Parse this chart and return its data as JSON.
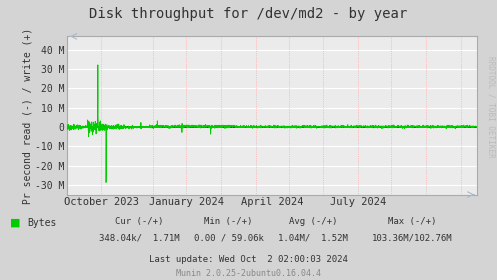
{
  "title": "Disk throughput for /dev/md2 - by year",
  "ylabel": "Pr second read (-) / write (+)",
  "right_label": "RRDTOOL / TOBI OETIKER",
  "bg_color": "#d4d4d4",
  "plot_bg_color": "#ebebeb",
  "line_color": "#00cc00",
  "zero_line_color": "#000000",
  "grid_h_color": "#ffffff",
  "grid_v_color": "#ff9999",
  "ylim": [
    -35000000,
    47000000
  ],
  "yticks": [
    -30000000,
    -20000000,
    -10000000,
    0,
    10000000,
    20000000,
    30000000,
    40000000
  ],
  "ytick_labels": [
    "-30 M",
    "-20 M",
    "-10 M",
    "0",
    "10 M",
    "20 M",
    "30 M",
    "40 M"
  ],
  "xtick_labels": [
    "October 2023",
    "January 2024",
    "April 2024",
    "July 2024"
  ],
  "xtick_positions": [
    0.083,
    0.29,
    0.5,
    0.71
  ],
  "vline_positions": [
    0.083,
    0.21,
    0.29,
    0.375,
    0.46,
    0.54,
    0.625,
    0.71,
    0.79,
    0.875,
    0.96
  ],
  "legend_label": "Bytes",
  "legend_color": "#00cc00",
  "cur_text": "Cur (-/+)",
  "cur_val": "348.04k/  1.71M",
  "min_text": "Min (-/+)",
  "min_val": "0.00 / 59.06k",
  "avg_text": "Avg (-/+)",
  "avg_val": "1.04M/  1.52M",
  "max_text": "Max (-/+)",
  "max_val": "103.36M/102.76M",
  "last_update": "Last update: Wed Oct  2 02:00:03 2024",
  "munin_text": "Munin 2.0.25-2ubuntu0.16.04.4",
  "figsize": [
    4.97,
    2.8
  ],
  "dpi": 100
}
